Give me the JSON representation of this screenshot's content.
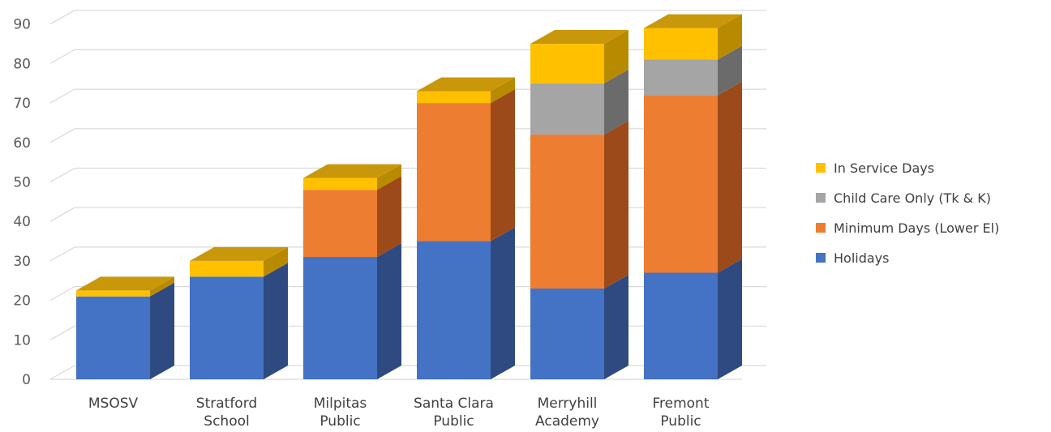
{
  "chart_data": {
    "type": "bar",
    "stacked": true,
    "three_d": true,
    "title": "",
    "xlabel": "",
    "ylabel": "",
    "ylim": [
      0,
      90
    ],
    "y_ticks": [
      0,
      10,
      20,
      30,
      40,
      50,
      60,
      70,
      80,
      90
    ],
    "grid": true,
    "legend_position": "right",
    "categories": [
      [
        "MSOSV"
      ],
      [
        "Stratford",
        "School"
      ],
      [
        "Milpitas",
        "Public"
      ],
      [
        "Santa Clara",
        "Public"
      ],
      [
        "Merryhill",
        "Academy"
      ],
      [
        "Fremont",
        "Public"
      ]
    ],
    "series": [
      {
        "name": "Holidays",
        "color": "#4472C4",
        "side_color": "#2E4A80",
        "values": [
          21,
          26,
          31,
          35,
          23,
          27
        ]
      },
      {
        "name": "Minimum Days (Lower El)",
        "color": "#ED7D31",
        "side_color": "#9C4A1A",
        "values": [
          0,
          0,
          17,
          35,
          39,
          45
        ]
      },
      {
        "name": "Child Care Only (Tk & K)",
        "color": "#A5A5A5",
        "side_color": "#6B6B6B",
        "values": [
          0,
          0,
          0,
          0,
          13,
          9
        ]
      },
      {
        "name": "In Service Days",
        "color": "#FFC000",
        "side_color": "#B88A00",
        "values": [
          1.5,
          4,
          3,
          3,
          10,
          8
        ]
      }
    ],
    "top_color": "#C8970A",
    "legend_order": [
      "In Service Days",
      "Child Care Only (Tk & K)",
      "Minimum Days (Lower El)",
      "Holidays"
    ]
  }
}
